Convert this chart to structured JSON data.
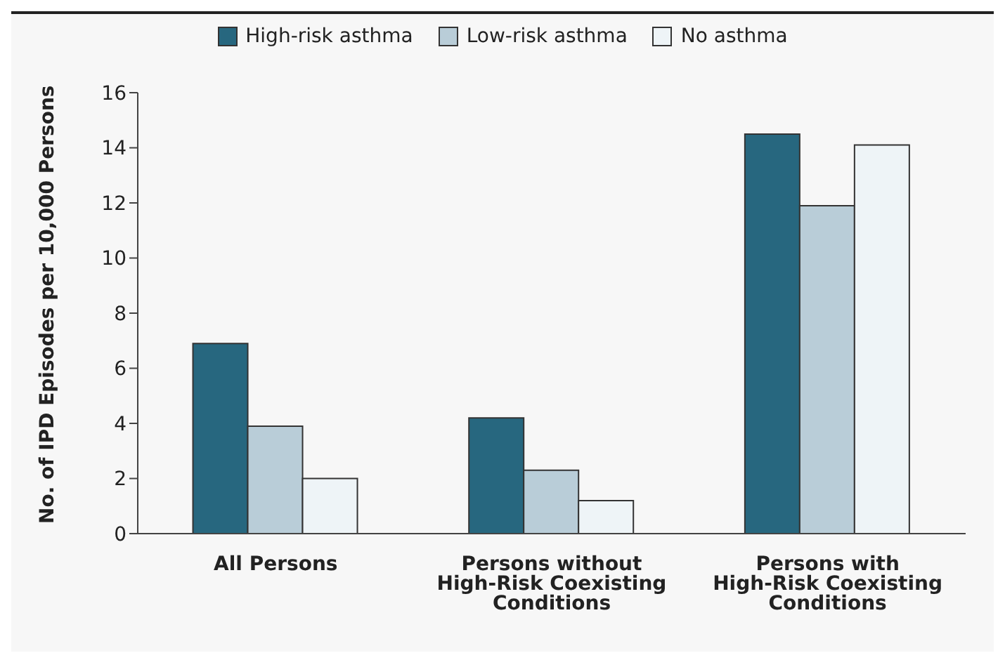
{
  "chart_data": {
    "type": "bar",
    "ylabel": "No. of IPD Episodes per 10,000 Persons",
    "categories": [
      "All Persons",
      "Persons without High-Risk Coexisting Conditions",
      "Persons with High-Risk Coexisting Conditions"
    ],
    "series": [
      {
        "name": "High-risk asthma",
        "color": "#27677f",
        "values": [
          6.9,
          4.2,
          14.5
        ]
      },
      {
        "name": "Low-risk asthma",
        "color": "#b9cdd8",
        "values": [
          3.9,
          2.3,
          11.9
        ]
      },
      {
        "name": "No asthma",
        "color": "#eef4f7",
        "values": [
          2.0,
          1.2,
          14.1
        ]
      }
    ],
    "ylim": [
      0,
      16
    ],
    "yticks": [
      0,
      2,
      4,
      6,
      8,
      10,
      12,
      14,
      16
    ],
    "grid": false,
    "legend": "top"
  }
}
